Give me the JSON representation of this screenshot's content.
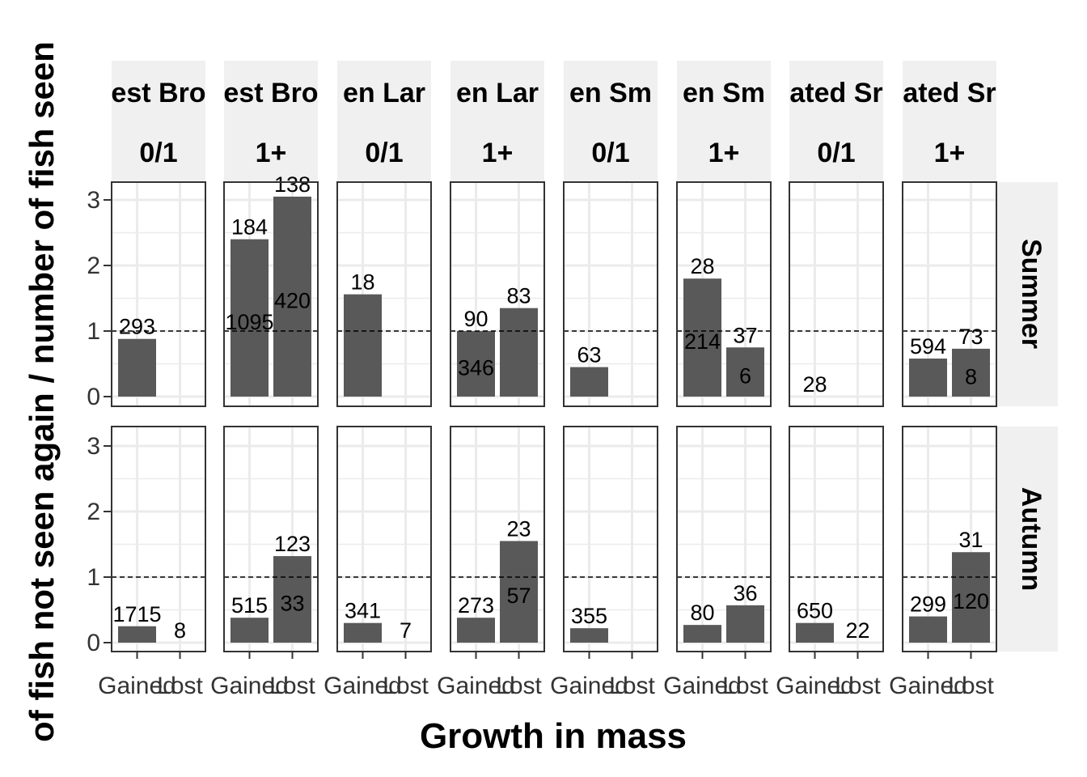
{
  "chart_data": {
    "type": "bar",
    "xlabel": "Growth in mass",
    "ylabel": "of fish not seen again / number of fish seen",
    "categories": [
      "Gained",
      "Lost"
    ],
    "ylim": [
      0,
      3.2
    ],
    "yticks": [
      0,
      1,
      2,
      3
    ],
    "reference_line": 1,
    "grid": true,
    "column_facets": [
      {
        "strip_top": "est Bro",
        "strip_bottom": "0/1"
      },
      {
        "strip_top": "est Bro",
        "strip_bottom": "1+"
      },
      {
        "strip_top": "en Lar",
        "strip_bottom": "0/1"
      },
      {
        "strip_top": "en Lar",
        "strip_bottom": "1+"
      },
      {
        "strip_top": "en Sm",
        "strip_bottom": "0/1"
      },
      {
        "strip_top": "en Sm",
        "strip_bottom": "1+"
      },
      {
        "strip_top": "ated Sr",
        "strip_bottom": "0/1"
      },
      {
        "strip_top": "ated Sr",
        "strip_bottom": "1+"
      }
    ],
    "row_facets": [
      "Summer",
      "Autumn"
    ],
    "panels": [
      [
        {
          "values": [
            0.88,
            null
          ],
          "labels": [
            [
              "293"
            ],
            []
          ]
        },
        {
          "values": [
            2.4,
            3.05
          ],
          "labels": [
            [
              "184",
              "1095"
            ],
            [
              "138",
              "420"
            ]
          ]
        },
        {
          "values": [
            1.56,
            null
          ],
          "labels": [
            [
              "18"
            ],
            []
          ]
        },
        {
          "values": [
            1.0,
            1.35
          ],
          "labels": [
            [
              "90",
              "346"
            ],
            [
              "83"
            ]
          ]
        },
        {
          "values": [
            0.45,
            null
          ],
          "labels": [
            [
              "63"
            ],
            []
          ]
        },
        {
          "values": [
            1.8,
            0.75
          ],
          "labels": [
            [
              "28",
              "214"
            ],
            [
              "37",
              "6"
            ]
          ]
        },
        {
          "values": [
            0,
            null
          ],
          "labels": [
            [
              "28"
            ],
            []
          ]
        },
        {
          "values": [
            0.58,
            0.73
          ],
          "labels": [
            [
              "594"
            ],
            [
              "73",
              "8"
            ]
          ]
        }
      ],
      [
        {
          "values": [
            0.25,
            0
          ],
          "labels": [
            [
              "1715"
            ],
            [
              "8"
            ]
          ]
        },
        {
          "values": [
            0.38,
            1.32
          ],
          "labels": [
            [
              "515"
            ],
            [
              "123",
              "33"
            ]
          ]
        },
        {
          "values": [
            0.3,
            0
          ],
          "labels": [
            [
              "341"
            ],
            [
              "7"
            ]
          ]
        },
        {
          "values": [
            0.38,
            1.55
          ],
          "labels": [
            [
              "273"
            ],
            [
              "23",
              "57"
            ]
          ]
        },
        {
          "values": [
            0.22,
            null
          ],
          "labels": [
            [
              "355"
            ],
            []
          ]
        },
        {
          "values": [
            0.27,
            0.57
          ],
          "labels": [
            [
              "80"
            ],
            [
              "36"
            ]
          ]
        },
        {
          "values": [
            0.3,
            0
          ],
          "labels": [
            [
              "650"
            ],
            [
              "22"
            ]
          ]
        },
        {
          "values": [
            0.4,
            1.38
          ],
          "labels": [
            [
              "299"
            ],
            [
              "31",
              "120"
            ]
          ]
        }
      ]
    ],
    "colors": {
      "bar": "#595959",
      "strip_fill": "#f0f0f0",
      "grid": "#ebebeb",
      "panel_border": "#333333",
      "text": "#000000"
    }
  }
}
